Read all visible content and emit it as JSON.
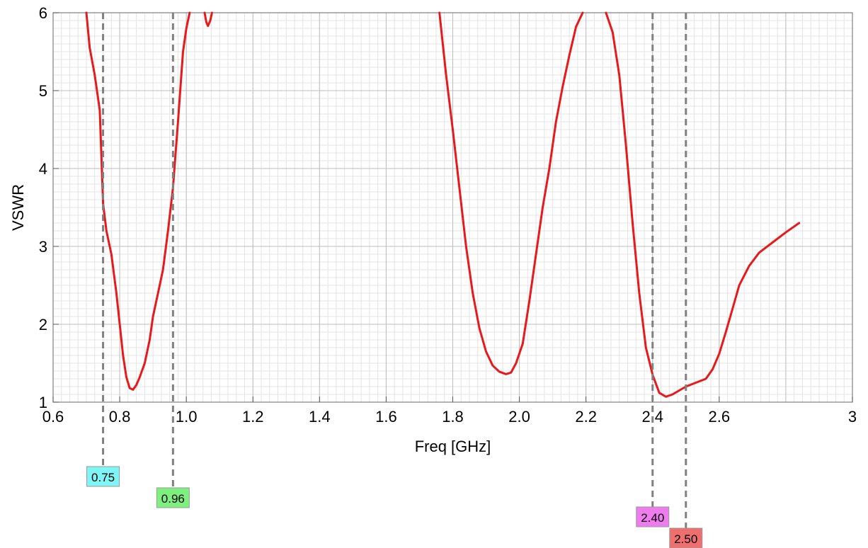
{
  "chart_data": {
    "type": "line",
    "title": "",
    "xlabel": "Freq [GHz]",
    "ylabel": "VSWR",
    "xlim": [
      0.6,
      3.0
    ],
    "ylim": [
      1,
      6
    ],
    "x_ticks": [
      "0.6",
      "0.8",
      "1.0",
      "1.2",
      "1.4",
      "1.6",
      "1.8",
      "2.0",
      "2.2",
      "2.4",
      "2.6",
      "3"
    ],
    "x_tick_values": [
      0.6,
      0.8,
      1.0,
      1.2,
      1.4,
      1.6,
      1.8,
      2.0,
      2.2,
      2.4,
      2.6,
      3.0
    ],
    "y_ticks": [
      "1",
      "2",
      "3",
      "4",
      "5",
      "6"
    ],
    "y_tick_values": [
      1,
      2,
      3,
      4,
      5,
      6
    ],
    "grid": true,
    "legend": "none",
    "series": [
      {
        "color": "#e8181b",
        "segments": [
          [
            [
              0.7,
              6.0
            ],
            [
              0.71,
              5.55
            ],
            [
              0.725,
              5.2
            ],
            [
              0.74,
              4.75
            ],
            [
              0.75,
              3.55
            ],
            [
              0.76,
              3.2
            ],
            [
              0.775,
              2.9
            ],
            [
              0.79,
              2.4
            ],
            [
              0.8,
              2.0
            ],
            [
              0.81,
              1.6
            ],
            [
              0.82,
              1.32
            ],
            [
              0.83,
              1.18
            ],
            [
              0.84,
              1.16
            ],
            [
              0.85,
              1.22
            ],
            [
              0.86,
              1.32
            ],
            [
              0.875,
              1.5
            ],
            [
              0.89,
              1.8
            ],
            [
              0.9,
              2.1
            ],
            [
              0.915,
              2.4
            ],
            [
              0.93,
              2.7
            ],
            [
              0.945,
              3.2
            ],
            [
              0.96,
              3.75
            ],
            [
              0.975,
              4.6
            ],
            [
              0.99,
              5.5
            ],
            [
              1.0,
              5.8
            ],
            [
              1.01,
              6.0
            ]
          ],
          [
            [
              1.055,
              6.0
            ],
            [
              1.06,
              5.88
            ],
            [
              1.065,
              5.83
            ],
            [
              1.072,
              5.9
            ],
            [
              1.077,
              6.0
            ]
          ],
          [
            [
              1.76,
              6.0
            ],
            [
              1.77,
              5.6
            ],
            [
              1.78,
              5.2
            ],
            [
              1.8,
              4.5
            ],
            [
              1.82,
              3.75
            ],
            [
              1.84,
              3.0
            ],
            [
              1.86,
              2.4
            ],
            [
              1.88,
              1.95
            ],
            [
              1.9,
              1.65
            ],
            [
              1.92,
              1.47
            ],
            [
              1.94,
              1.39
            ],
            [
              1.96,
              1.36
            ],
            [
              1.975,
              1.38
            ],
            [
              1.99,
              1.5
            ],
            [
              2.01,
              1.75
            ],
            [
              2.03,
              2.3
            ],
            [
              2.05,
              2.9
            ],
            [
              2.07,
              3.5
            ],
            [
              2.09,
              4.0
            ],
            [
              2.11,
              4.6
            ],
            [
              2.13,
              5.05
            ],
            [
              2.15,
              5.45
            ],
            [
              2.17,
              5.82
            ],
            [
              2.19,
              6.0
            ]
          ],
          [
            [
              2.26,
              6.0
            ],
            [
              2.28,
              5.75
            ],
            [
              2.3,
              5.2
            ],
            [
              2.32,
              4.3
            ],
            [
              2.34,
              3.3
            ],
            [
              2.36,
              2.4
            ],
            [
              2.38,
              1.7
            ],
            [
              2.4,
              1.35
            ],
            [
              2.42,
              1.12
            ],
            [
              2.44,
              1.07
            ],
            [
              2.46,
              1.1
            ],
            [
              2.48,
              1.15
            ],
            [
              2.5,
              1.2
            ],
            [
              2.53,
              1.25
            ],
            [
              2.56,
              1.3
            ],
            [
              2.58,
              1.42
            ],
            [
              2.6,
              1.62
            ],
            [
              2.62,
              1.9
            ],
            [
              2.64,
              2.2
            ],
            [
              2.66,
              2.5
            ],
            [
              2.69,
              2.75
            ],
            [
              2.72,
              2.92
            ],
            [
              2.76,
              3.05
            ],
            [
              2.8,
              3.18
            ],
            [
              2.84,
              3.3
            ]
          ]
        ]
      }
    ],
    "markers": [
      {
        "x": 0.75,
        "label": "0.75",
        "color": "#7ff5f5"
      },
      {
        "x": 0.96,
        "label": "0.96",
        "color": "#7df07d"
      },
      {
        "x": 2.4,
        "label": "2.40",
        "color": "#ee7cee"
      },
      {
        "x": 2.5,
        "label": "2.50",
        "color": "#ef6f6f"
      }
    ]
  }
}
